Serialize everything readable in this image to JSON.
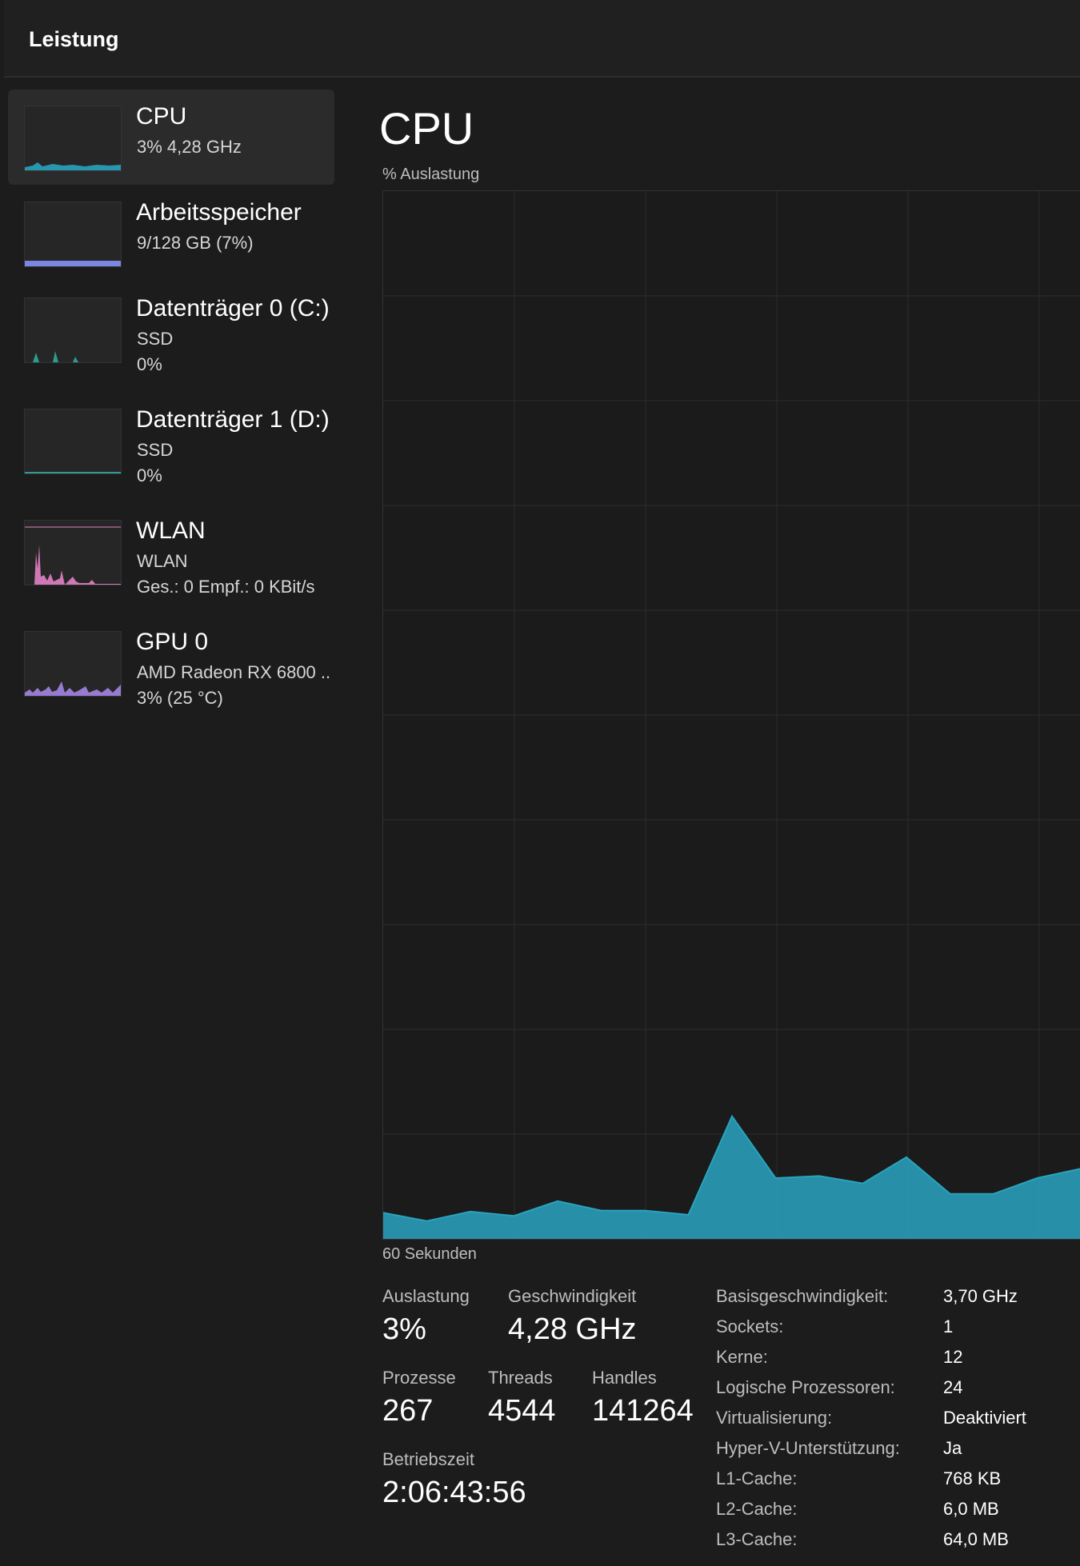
{
  "window": {
    "title": "Leistung"
  },
  "colors": {
    "cpu": "#29a3bf",
    "memory": "#7a86e0",
    "disk": "#2c9c8e",
    "network": "#e381c5",
    "gpu": "#a385e3"
  },
  "sidebar": {
    "items": [
      {
        "name": "CPU",
        "line1": "3%  4,28 GHz",
        "line2": "",
        "icon": "cpu-graph",
        "selected": true
      },
      {
        "name": "Arbeitsspeicher",
        "line1": "9/128 GB (7%)",
        "line2": "",
        "icon": "memory-graph"
      },
      {
        "name": "Datenträger 0 (C:)",
        "line1": "SSD",
        "line2": "0%",
        "icon": "disk-graph"
      },
      {
        "name": "Datenträger 1 (D:)",
        "line1": "SSD",
        "line2": "0%",
        "icon": "disk-graph"
      },
      {
        "name": "WLAN",
        "line1": "WLAN",
        "line2": "Ges.: 0  Empf.: 0 KBit/s",
        "icon": "network-graph"
      },
      {
        "name": "GPU 0",
        "line1": "AMD Radeon RX 6800 ..",
        "line2": "3%  (25 °C)",
        "icon": "gpu-graph"
      }
    ]
  },
  "main": {
    "title": "CPU",
    "chart_label": "% Auslastung",
    "time_label": "60 Sekunden"
  },
  "chart_data": {
    "type": "area",
    "title": "CPU",
    "ylabel": "% Auslastung",
    "xlabel": "60 Sekunden",
    "ylim": [
      0,
      100
    ],
    "grid": true,
    "x": [
      0,
      1,
      2,
      3,
      4,
      5,
      6,
      7,
      8,
      9,
      10,
      11,
      12,
      13,
      14,
      15,
      16
    ],
    "series": [
      {
        "values": [
          2.5,
          1.7,
          2.6,
          2.2,
          3.6,
          2.7,
          2.7,
          2.3,
          11.7,
          5.8,
          6.0,
          5.3,
          7.8,
          4.3,
          4.3,
          5.8,
          6.7
        ]
      }
    ]
  },
  "stats": {
    "auslastung": {
      "label": "Auslastung",
      "value": "3%"
    },
    "geschwindigkeit": {
      "label": "Geschwindigkeit",
      "value": "4,28 GHz"
    },
    "prozesse": {
      "label": "Prozesse",
      "value": "267"
    },
    "threads": {
      "label": "Threads",
      "value": "4544"
    },
    "handles": {
      "label": "Handles",
      "value": "141264"
    },
    "betriebszeit": {
      "label": "Betriebszeit",
      "value": "2:06:43:56"
    }
  },
  "info": [
    {
      "key": "Basisgeschwindigkeit:",
      "value": "3,70 GHz"
    },
    {
      "key": "Sockets:",
      "value": "1"
    },
    {
      "key": "Kerne:",
      "value": "12"
    },
    {
      "key": "Logische Prozessoren:",
      "value": "24"
    },
    {
      "key": "Virtualisierung:",
      "value": "Deaktiviert"
    },
    {
      "key": "Hyper-V-Unterstützung:",
      "value": "Ja"
    },
    {
      "key": "L1-Cache:",
      "value": "768 KB"
    },
    {
      "key": "L2-Cache:",
      "value": "6,0 MB"
    },
    {
      "key": "L3-Cache:",
      "value": "64,0 MB"
    }
  ]
}
